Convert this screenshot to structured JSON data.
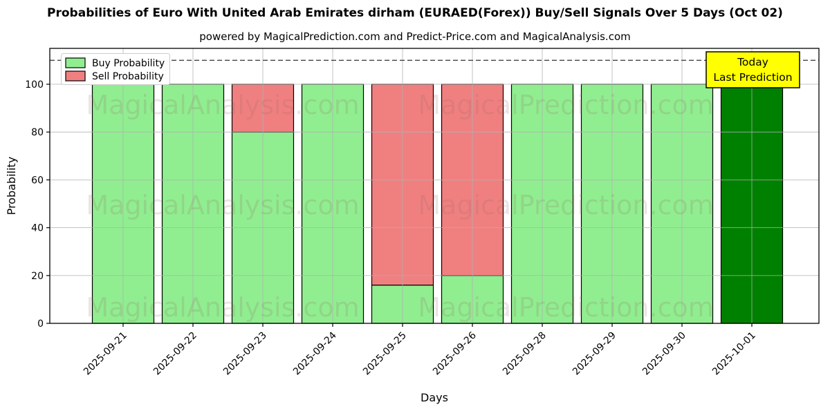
{
  "title": "Probabilities of Euro With United Arab Emirates dirham (EURAED(Forex)) Buy/Sell Signals Over 5 Days (Oct 02)",
  "subtitle": "powered by MagicalPrediction.com and Predict-Price.com and MagicalAnalysis.com",
  "watermarks": {
    "left_text": "MagicalAnalysis.com",
    "right_text": "MagicalPrediction.com"
  },
  "legend": {
    "items": [
      {
        "label": "Buy Probability",
        "color": "#90ee90"
      },
      {
        "label": "Sell Probability",
        "color": "#f08080"
      }
    ]
  },
  "annotation": {
    "line1": "Today",
    "line2": "Last Prediction",
    "bg_color": "#ffff00",
    "border_color": "#000000"
  },
  "chart_data": {
    "type": "bar",
    "stacked": true,
    "title": "Probabilities of Euro With United Arab Emirates dirham (EURAED(Forex)) Buy/Sell Signals Over 5 Days (Oct 02)",
    "xlabel": "Days",
    "ylabel": "Probability",
    "categories": [
      "2025-09-21",
      "2025-09-22",
      "2025-09-23",
      "2025-09-24",
      "2025-09-25",
      "2025-09-26",
      "2025-09-28",
      "2025-09-29",
      "2025-09-30",
      "2025-10-01"
    ],
    "series": [
      {
        "name": "Buy Probability",
        "color": "#90ee90",
        "values": [
          100,
          100,
          80,
          100,
          16,
          20,
          100,
          100,
          100,
          100
        ]
      },
      {
        "name": "Sell Probability",
        "color": "#f08080",
        "values": [
          0,
          0,
          20,
          0,
          84,
          80,
          0,
          0,
          0,
          0
        ]
      }
    ],
    "highlight_bar": {
      "index": 9,
      "color": "#008000",
      "meaning": "Today / Last Prediction"
    },
    "bar_edge_color": "#000000",
    "yticks": [
      0,
      20,
      40,
      60,
      80,
      100
    ],
    "ylim": [
      0,
      115
    ],
    "threshold_line_y": 110,
    "threshold_line_style": "dashed",
    "threshold_line_color": "#444444",
    "grid": true,
    "grid_color": "#b0b0b0",
    "legend_position": "upper left"
  }
}
